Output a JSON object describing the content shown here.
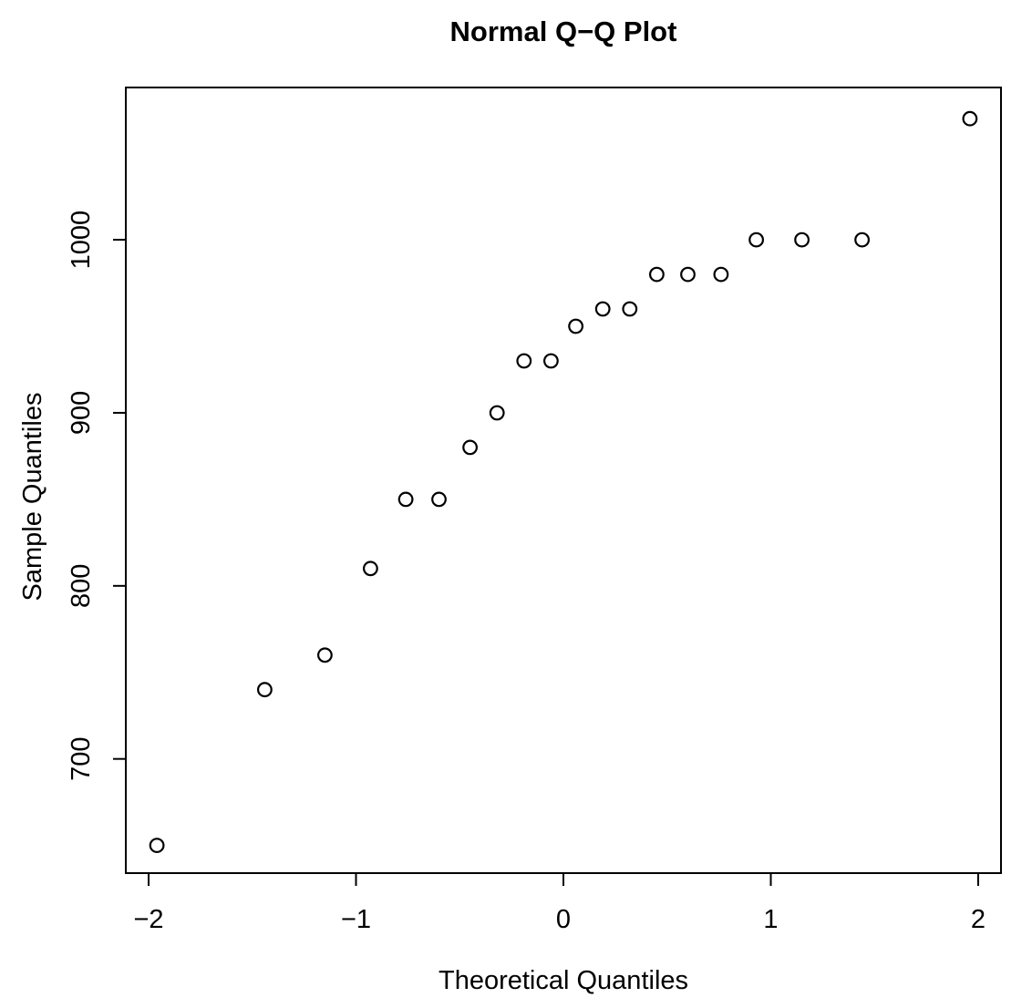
{
  "chart_data": {
    "type": "scatter",
    "title": "Normal Q−Q Plot",
    "xlabel": "Theoretical Quantiles",
    "ylabel": "Sample Quantiles",
    "xlim": [
      -2.11,
      2.11
    ],
    "ylim": [
      634,
      1088
    ],
    "x_ticks": [
      -2,
      -1,
      0,
      1,
      2
    ],
    "x_tick_labels": [
      "−2",
      "−1",
      "0",
      "1",
      "2"
    ],
    "y_ticks": [
      700,
      800,
      900,
      1000
    ],
    "y_tick_labels": [
      "700",
      "800",
      "900",
      "1000"
    ],
    "grid": false,
    "legend": null,
    "marker": "open-circle",
    "colors": {
      "foreground": "#000000",
      "background": "#ffffff"
    },
    "points": [
      {
        "x": -1.96,
        "y": 650
      },
      {
        "x": -1.44,
        "y": 740
      },
      {
        "x": -1.15,
        "y": 760
      },
      {
        "x": -0.93,
        "y": 810
      },
      {
        "x": -0.76,
        "y": 850
      },
      {
        "x": -0.6,
        "y": 850
      },
      {
        "x": -0.45,
        "y": 880
      },
      {
        "x": -0.32,
        "y": 900
      },
      {
        "x": -0.19,
        "y": 930
      },
      {
        "x": -0.06,
        "y": 930
      },
      {
        "x": 0.06,
        "y": 950
      },
      {
        "x": 0.19,
        "y": 960
      },
      {
        "x": 0.32,
        "y": 960
      },
      {
        "x": 0.45,
        "y": 980
      },
      {
        "x": 0.6,
        "y": 980
      },
      {
        "x": 0.76,
        "y": 980
      },
      {
        "x": 0.93,
        "y": 1000
      },
      {
        "x": 1.15,
        "y": 1000
      },
      {
        "x": 1.44,
        "y": 1000
      },
      {
        "x": 1.96,
        "y": 1070
      }
    ]
  }
}
